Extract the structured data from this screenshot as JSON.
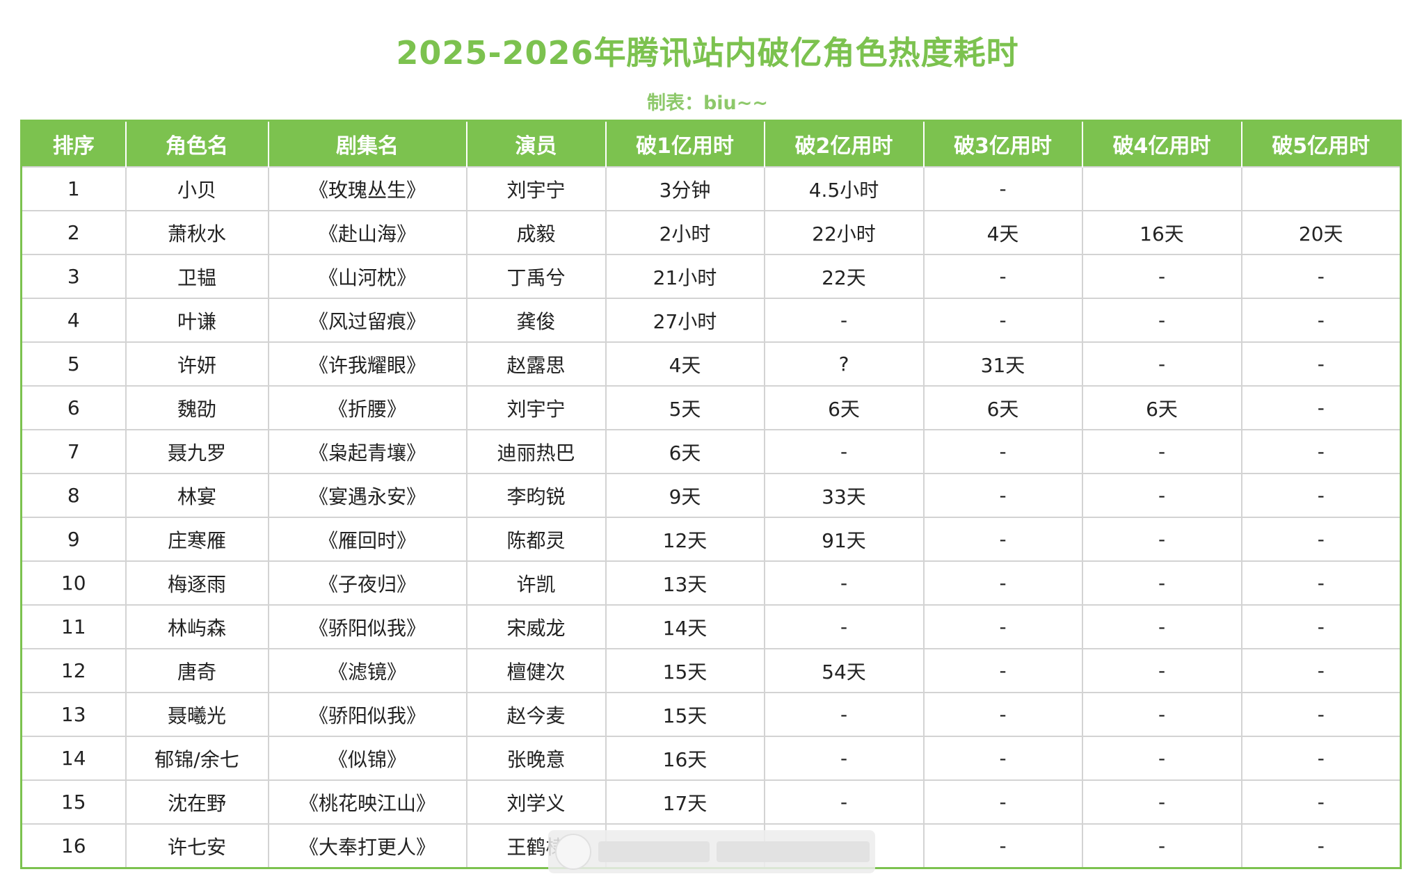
{
  "title": "2025-2026年腾讯站内破亿角色热度耗时",
  "subtitle": "制表：biu~~",
  "colors": {
    "accent": "#7cc24f",
    "header_text": "#ffffff",
    "grid": "#d3d3d3"
  },
  "table": {
    "columns": [
      "排序",
      "角色名",
      "剧集名",
      "演员",
      "破1亿用时",
      "破2亿用时",
      "破3亿用时",
      "破4亿用时",
      "破5亿用时"
    ],
    "rows": [
      [
        "1",
        "小贝",
        "《玫瑰丛生》",
        "刘宇宁",
        "3分钟",
        "4.5小时",
        "-",
        "",
        ""
      ],
      [
        "2",
        "萧秋水",
        "《赴山海》",
        "成毅",
        "2小时",
        "22小时",
        "4天",
        "16天",
        "20天"
      ],
      [
        "3",
        "卫韫",
        "《山河枕》",
        "丁禹兮",
        "21小时",
        "22天",
        "-",
        "-",
        "-"
      ],
      [
        "4",
        "叶谦",
        "《风过留痕》",
        "龚俊",
        "27小时",
        "-",
        "-",
        "-",
        "-"
      ],
      [
        "5",
        "许妍",
        "《许我耀眼》",
        "赵露思",
        "4天",
        "?",
        "31天",
        "-",
        "-"
      ],
      [
        "6",
        "魏劭",
        "《折腰》",
        "刘宇宁",
        "5天",
        "6天",
        "6天",
        "6天",
        "-"
      ],
      [
        "7",
        "聂九罗",
        "《枭起青壤》",
        "迪丽热巴",
        "6天",
        "-",
        "-",
        "-",
        "-"
      ],
      [
        "8",
        "林宴",
        "《宴遇永安》",
        "李昀锐",
        "9天",
        "33天",
        "-",
        "-",
        "-"
      ],
      [
        "9",
        "庄寒雁",
        "《雁回时》",
        "陈都灵",
        "12天",
        "91天",
        "-",
        "-",
        "-"
      ],
      [
        "10",
        "梅逐雨",
        "《子夜归》",
        "许凯",
        "13天",
        "-",
        "-",
        "-",
        "-"
      ],
      [
        "11",
        "林屿森",
        "《骄阳似我》",
        "宋威龙",
        "14天",
        "-",
        "-",
        "-",
        "-"
      ],
      [
        "12",
        "唐奇",
        "《滤镜》",
        "檀健次",
        "15天",
        "54天",
        "-",
        "-",
        "-"
      ],
      [
        "13",
        "聂曦光",
        "《骄阳似我》",
        "赵今麦",
        "15天",
        "-",
        "-",
        "-",
        "-"
      ],
      [
        "14",
        "郁锦/余七",
        "《似锦》",
        "张晚意",
        "16天",
        "-",
        "-",
        "-",
        "-"
      ],
      [
        "15",
        "沈在野",
        "《桃花映江山》",
        "刘学义",
        "17天",
        "-",
        "-",
        "-",
        "-"
      ],
      [
        "16",
        "许七安",
        "《大奉打更人》",
        "王鹤棣",
        "",
        "",
        "-",
        "-",
        "-"
      ]
    ]
  }
}
